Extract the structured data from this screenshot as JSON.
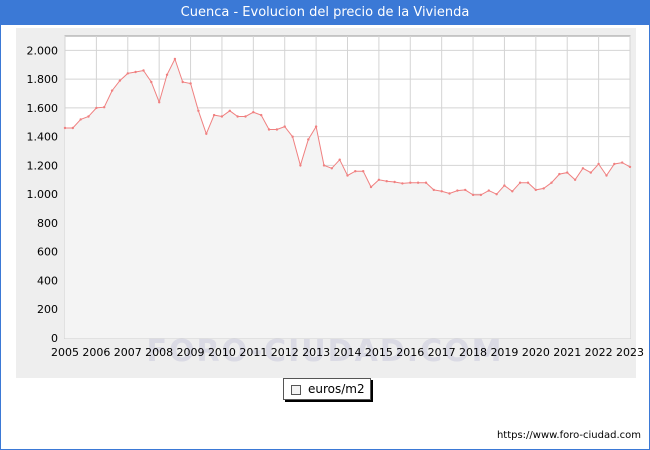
{
  "title": "Cuenca - Evolucion del precio de la Vivienda",
  "watermark": "FORO-CIUDAD.COM",
  "footer_url": "https://www.foro-ciudad.com",
  "colors": {
    "title_bar": "#3b79d6",
    "line": "#f08080",
    "fill": "#f4f4f4",
    "grid": "#d4d4d4"
  },
  "chart_data": {
    "type": "area",
    "title": "Cuenca - Evolucion del precio de la Vivienda",
    "xlabel": "",
    "ylabel": "",
    "x_ticks": [
      "2005",
      "2006",
      "2007",
      "2008",
      "2009",
      "2010",
      "2011",
      "2012",
      "2013",
      "2014",
      "2015",
      "2016",
      "2017",
      "2018",
      "2019",
      "2020",
      "2021",
      "2022",
      "2023"
    ],
    "y_ticks": [
      0,
      200,
      400,
      600,
      800,
      1000,
      1200,
      1400,
      1600,
      1800,
      2000
    ],
    "y_tick_labels": [
      "0",
      "200",
      "400",
      "600",
      "800",
      "1.000",
      "1.200",
      "1.400",
      "1.600",
      "1.800",
      "2.000"
    ],
    "xlim": [
      2005,
      2023
    ],
    "ylim": [
      0,
      2100
    ],
    "grid": true,
    "legend_position": "bottom-center",
    "series": [
      {
        "name": "euros/m2",
        "x": [
          2005.0,
          2005.25,
          2005.5,
          2005.75,
          2006.0,
          2006.25,
          2006.5,
          2006.75,
          2007.0,
          2007.25,
          2007.5,
          2007.75,
          2008.0,
          2008.25,
          2008.5,
          2008.75,
          2009.0,
          2009.25,
          2009.5,
          2009.75,
          2010.0,
          2010.25,
          2010.5,
          2010.75,
          2011.0,
          2011.25,
          2011.5,
          2011.75,
          2012.0,
          2012.25,
          2012.5,
          2012.75,
          2013.0,
          2013.25,
          2013.5,
          2013.75,
          2014.0,
          2014.25,
          2014.5,
          2014.75,
          2015.0,
          2015.25,
          2015.5,
          2015.75,
          2016.0,
          2016.25,
          2016.5,
          2016.75,
          2017.0,
          2017.25,
          2017.5,
          2017.75,
          2018.0,
          2018.25,
          2018.5,
          2018.75,
          2019.0,
          2019.25,
          2019.5,
          2019.75,
          2020.0,
          2020.25,
          2020.5,
          2020.75,
          2021.0,
          2021.25,
          2021.5,
          2021.75,
          2022.0,
          2022.25,
          2022.5,
          2022.75,
          2023.0
        ],
        "values": [
          1460,
          1460,
          1520,
          1540,
          1600,
          1605,
          1720,
          1790,
          1840,
          1850,
          1860,
          1780,
          1640,
          1830,
          1940,
          1780,
          1770,
          1580,
          1420,
          1550,
          1540,
          1580,
          1540,
          1540,
          1570,
          1550,
          1450,
          1450,
          1470,
          1400,
          1200,
          1380,
          1470,
          1200,
          1180,
          1240,
          1130,
          1160,
          1160,
          1050,
          1100,
          1090,
          1085,
          1075,
          1080,
          1080,
          1080,
          1030,
          1020,
          1005,
          1025,
          1030,
          995,
          995,
          1025,
          1000,
          1060,
          1020,
          1080,
          1080,
          1030,
          1040,
          1080,
          1140,
          1150,
          1100,
          1180,
          1150,
          1210,
          1130,
          1210,
          1220,
          1190
        ]
      }
    ]
  },
  "legend": {
    "label": "euros/m2"
  }
}
